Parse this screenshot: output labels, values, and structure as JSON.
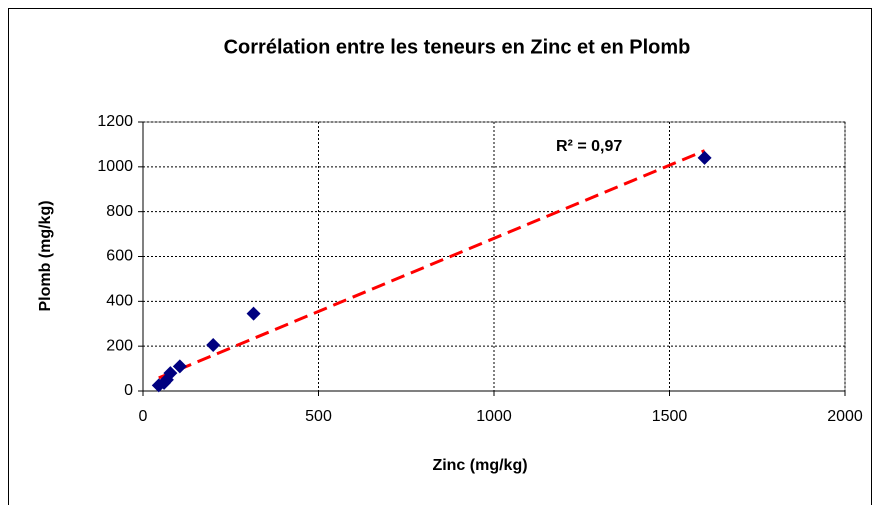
{
  "chart_data": {
    "type": "scatter",
    "title": "Corrélation entre les teneurs en Zinc et en Plomb",
    "x_label": "Zinc (mg/kg)",
    "y_label": "Plomb (mg/kg)",
    "series": [
      {
        "color": "#000080",
        "x": [
          45,
          60,
          68,
          78,
          105,
          200,
          315,
          1600
        ],
        "values": [
          25,
          36,
          50,
          80,
          110,
          205,
          345,
          1040
        ]
      }
    ],
    "trendline": {
      "color": "#ff0000",
      "slope": 0.652,
      "intercept": 29,
      "annotation": "R² = 0,97"
    },
    "xlim": [
      0,
      2000
    ],
    "xticks": [
      0,
      500,
      1000,
      1500,
      2000
    ],
    "ylim": [
      0,
      1200
    ],
    "yticks": [
      0,
      200,
      400,
      600,
      800,
      1000,
      1200
    ],
    "grid": true
  }
}
